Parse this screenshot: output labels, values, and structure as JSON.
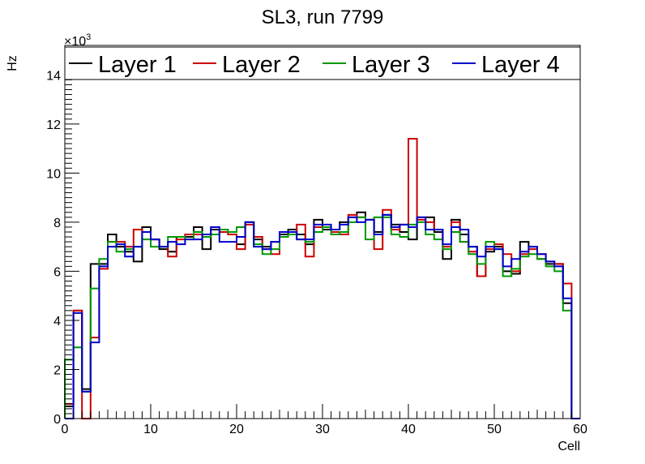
{
  "chart_data": {
    "type": "histogram-step",
    "title": "SL3, run 7799",
    "xlabel": "Cell",
    "ylabel": "Hz",
    "exponent_label": "×10",
    "exponent_power": "3",
    "x_range": [
      0,
      60
    ],
    "y_range": [
      0,
      15.2
    ],
    "y_unit_multiplier": 1000,
    "x_ticks": [
      0,
      10,
      20,
      30,
      40,
      50,
      60
    ],
    "y_ticks": [
      0,
      2,
      4,
      6,
      8,
      10,
      12,
      14
    ],
    "grid": false,
    "legend_position": "top",
    "series": [
      {
        "name": "Layer 1",
        "color": "#000000",
        "values": [
          0.5,
          4.4,
          1.2,
          6.3,
          6.3,
          7.5,
          7.0,
          6.8,
          6.4,
          7.8,
          7.3,
          6.9,
          6.8,
          7.4,
          7.4,
          7.8,
          6.9,
          7.7,
          7.6,
          7.5,
          7.1,
          8.0,
          7.3,
          7.0,
          7.2,
          7.5,
          7.7,
          7.5,
          7.1,
          8.1,
          7.7,
          7.7,
          8.0,
          8.2,
          8.4,
          8.1,
          7.6,
          8.3,
          7.9,
          7.6,
          7.3,
          8.2,
          8.2,
          7.6,
          6.5,
          8.1,
          7.5,
          7.0,
          5.8,
          6.8,
          7.0,
          6.0,
          5.9,
          7.2,
          7.0,
          6.5,
          6.3,
          6.3,
          4.7,
          0.0
        ]
      },
      {
        "name": "Layer 2",
        "color": "#cc0000",
        "values": [
          0.6,
          4.4,
          0.0,
          3.3,
          6.1,
          7.2,
          7.2,
          7.0,
          7.7,
          7.6,
          7.3,
          7.0,
          6.6,
          7.3,
          7.5,
          7.5,
          7.4,
          7.5,
          7.6,
          7.5,
          6.9,
          7.9,
          7.4,
          6.9,
          6.7,
          7.6,
          7.6,
          7.9,
          6.6,
          7.8,
          7.8,
          7.6,
          7.5,
          8.3,
          8.2,
          8.1,
          6.9,
          8.5,
          7.7,
          7.9,
          11.4,
          8.1,
          8.0,
          7.7,
          7.0,
          8.0,
          7.2,
          6.8,
          5.8,
          6.9,
          7.1,
          6.7,
          6.0,
          6.7,
          6.9,
          6.7,
          6.4,
          6.3,
          5.5,
          0.0
        ]
      },
      {
        "name": "Layer 3",
        "color": "#009900",
        "values": [
          2.4,
          2.9,
          1.1,
          5.3,
          6.5,
          7.2,
          6.8,
          6.9,
          7.0,
          7.3,
          7.0,
          7.0,
          7.4,
          7.4,
          7.3,
          7.6,
          7.4,
          7.5,
          7.7,
          7.6,
          7.8,
          8.0,
          7.1,
          6.7,
          6.9,
          7.4,
          7.5,
          7.3,
          7.2,
          7.6,
          7.8,
          7.5,
          7.6,
          8.0,
          8.2,
          7.3,
          8.2,
          8.2,
          7.5,
          7.4,
          7.9,
          8.0,
          7.5,
          7.3,
          6.9,
          7.6,
          7.2,
          6.7,
          6.3,
          7.2,
          6.9,
          5.8,
          6.1,
          6.6,
          6.7,
          6.5,
          6.2,
          6.0,
          4.4,
          0.0
        ]
      },
      {
        "name": "Layer 4",
        "color": "#0000cc",
        "values": [
          0.0,
          4.3,
          1.1,
          3.1,
          6.2,
          7.0,
          7.1,
          6.6,
          7.0,
          7.6,
          7.3,
          7.0,
          7.2,
          7.1,
          7.3,
          7.3,
          7.5,
          7.8,
          7.2,
          7.2,
          7.4,
          8.0,
          7.0,
          6.9,
          7.2,
          7.6,
          7.6,
          7.3,
          7.3,
          7.9,
          7.9,
          7.7,
          7.9,
          8.2,
          8.0,
          8.1,
          7.5,
          8.3,
          7.8,
          7.9,
          7.8,
          8.2,
          7.7,
          7.7,
          7.1,
          7.8,
          7.7,
          7.0,
          6.6,
          7.0,
          6.9,
          6.2,
          6.5,
          6.8,
          7.0,
          6.7,
          6.4,
          6.2,
          4.9,
          0.0
        ]
      }
    ]
  }
}
